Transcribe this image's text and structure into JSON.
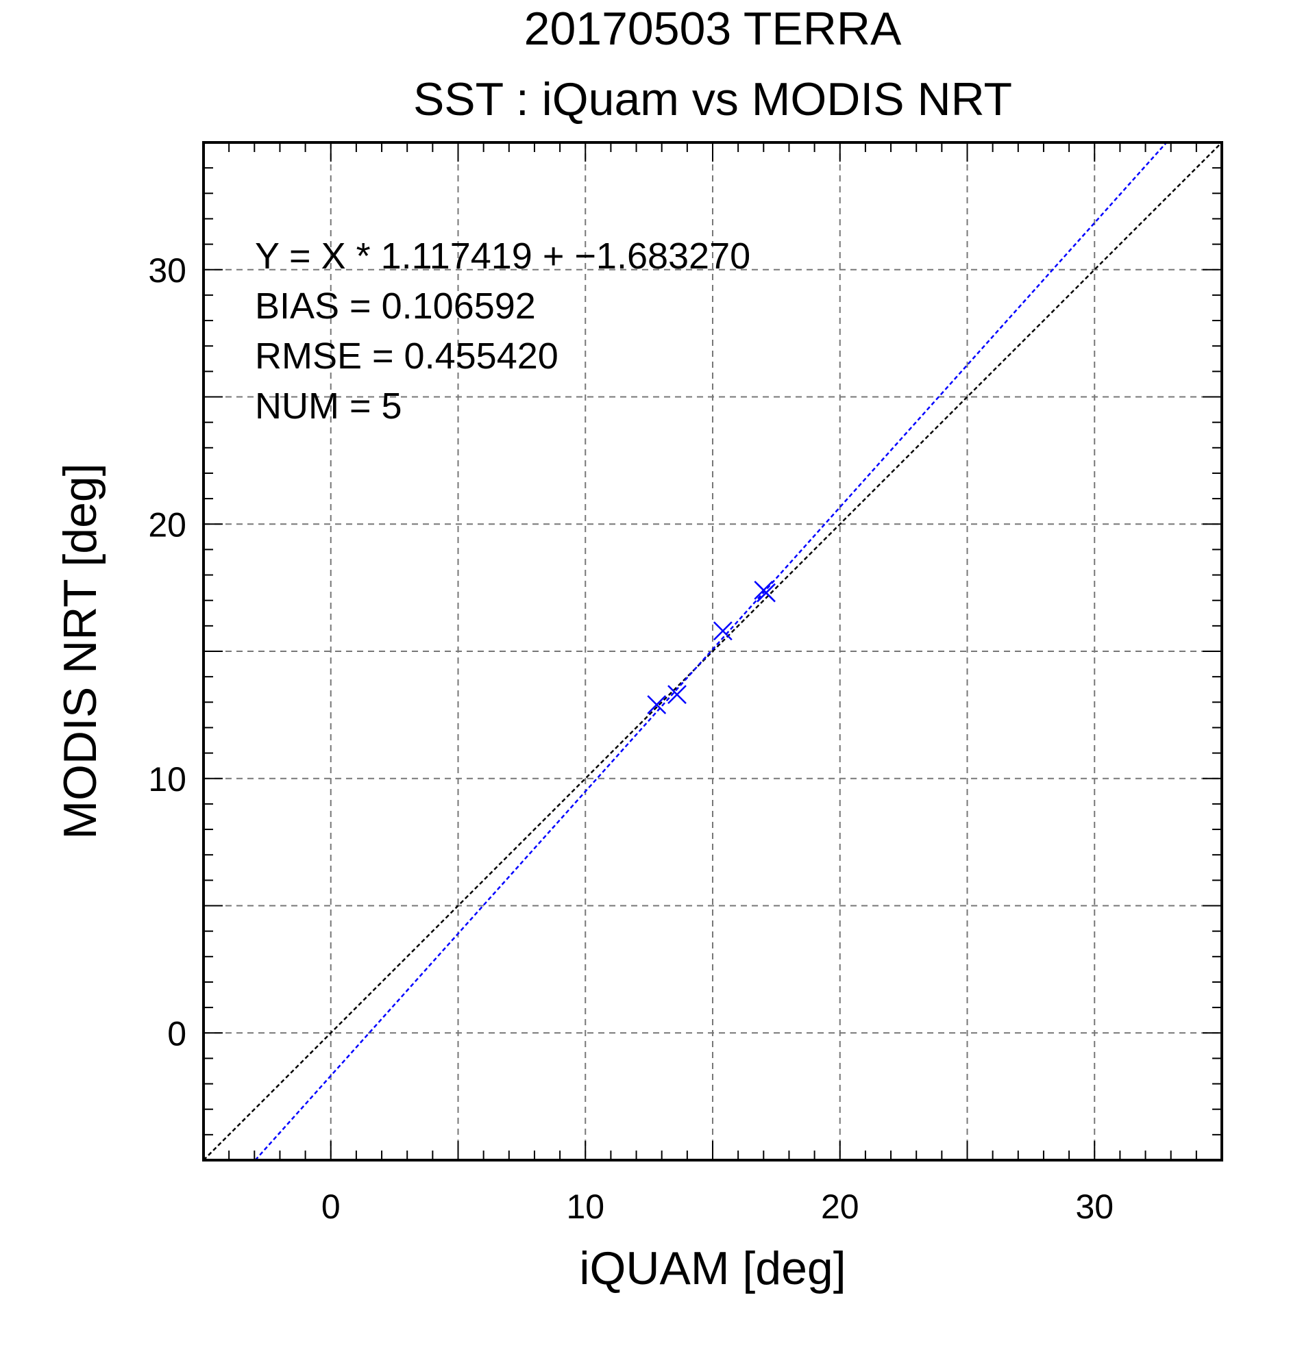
{
  "chart_data": {
    "type": "scatter",
    "title": "20170503 TERRA",
    "subtitle": "SST : iQuam vs MODIS NRT",
    "xlabel": "iQUAM [deg]",
    "ylabel": "MODIS NRT [deg]",
    "xlim": [
      -5,
      35
    ],
    "ylim": [
      -5,
      35
    ],
    "xticks": [
      0,
      10,
      20,
      30
    ],
    "yticks": [
      0,
      10,
      20,
      30
    ],
    "grid": true,
    "series": [
      {
        "marker": "x",
        "color": "#0000ff",
        "points": [
          {
            "x": 12.8,
            "y": 12.9
          },
          {
            "x": 13.6,
            "y": 13.3
          },
          {
            "x": 15.4,
            "y": 15.8
          },
          {
            "x": 17.0,
            "y": 17.4
          },
          {
            "x": 17.1,
            "y": 17.3
          }
        ]
      }
    ],
    "lines": [
      {
        "kind": "identity",
        "slope": 1,
        "intercept": 0,
        "color": "#000000",
        "style": "dotted"
      },
      {
        "kind": "regression",
        "slope": 1.117419,
        "intercept": -1.68327,
        "color": "#0000ff",
        "style": "dotted"
      }
    ],
    "annotations": [
      "Y = X * 1.117419 + −1.683270",
      "BIAS = 0.106592",
      "RMSE = 0.455420",
      "NUM = 5"
    ]
  }
}
